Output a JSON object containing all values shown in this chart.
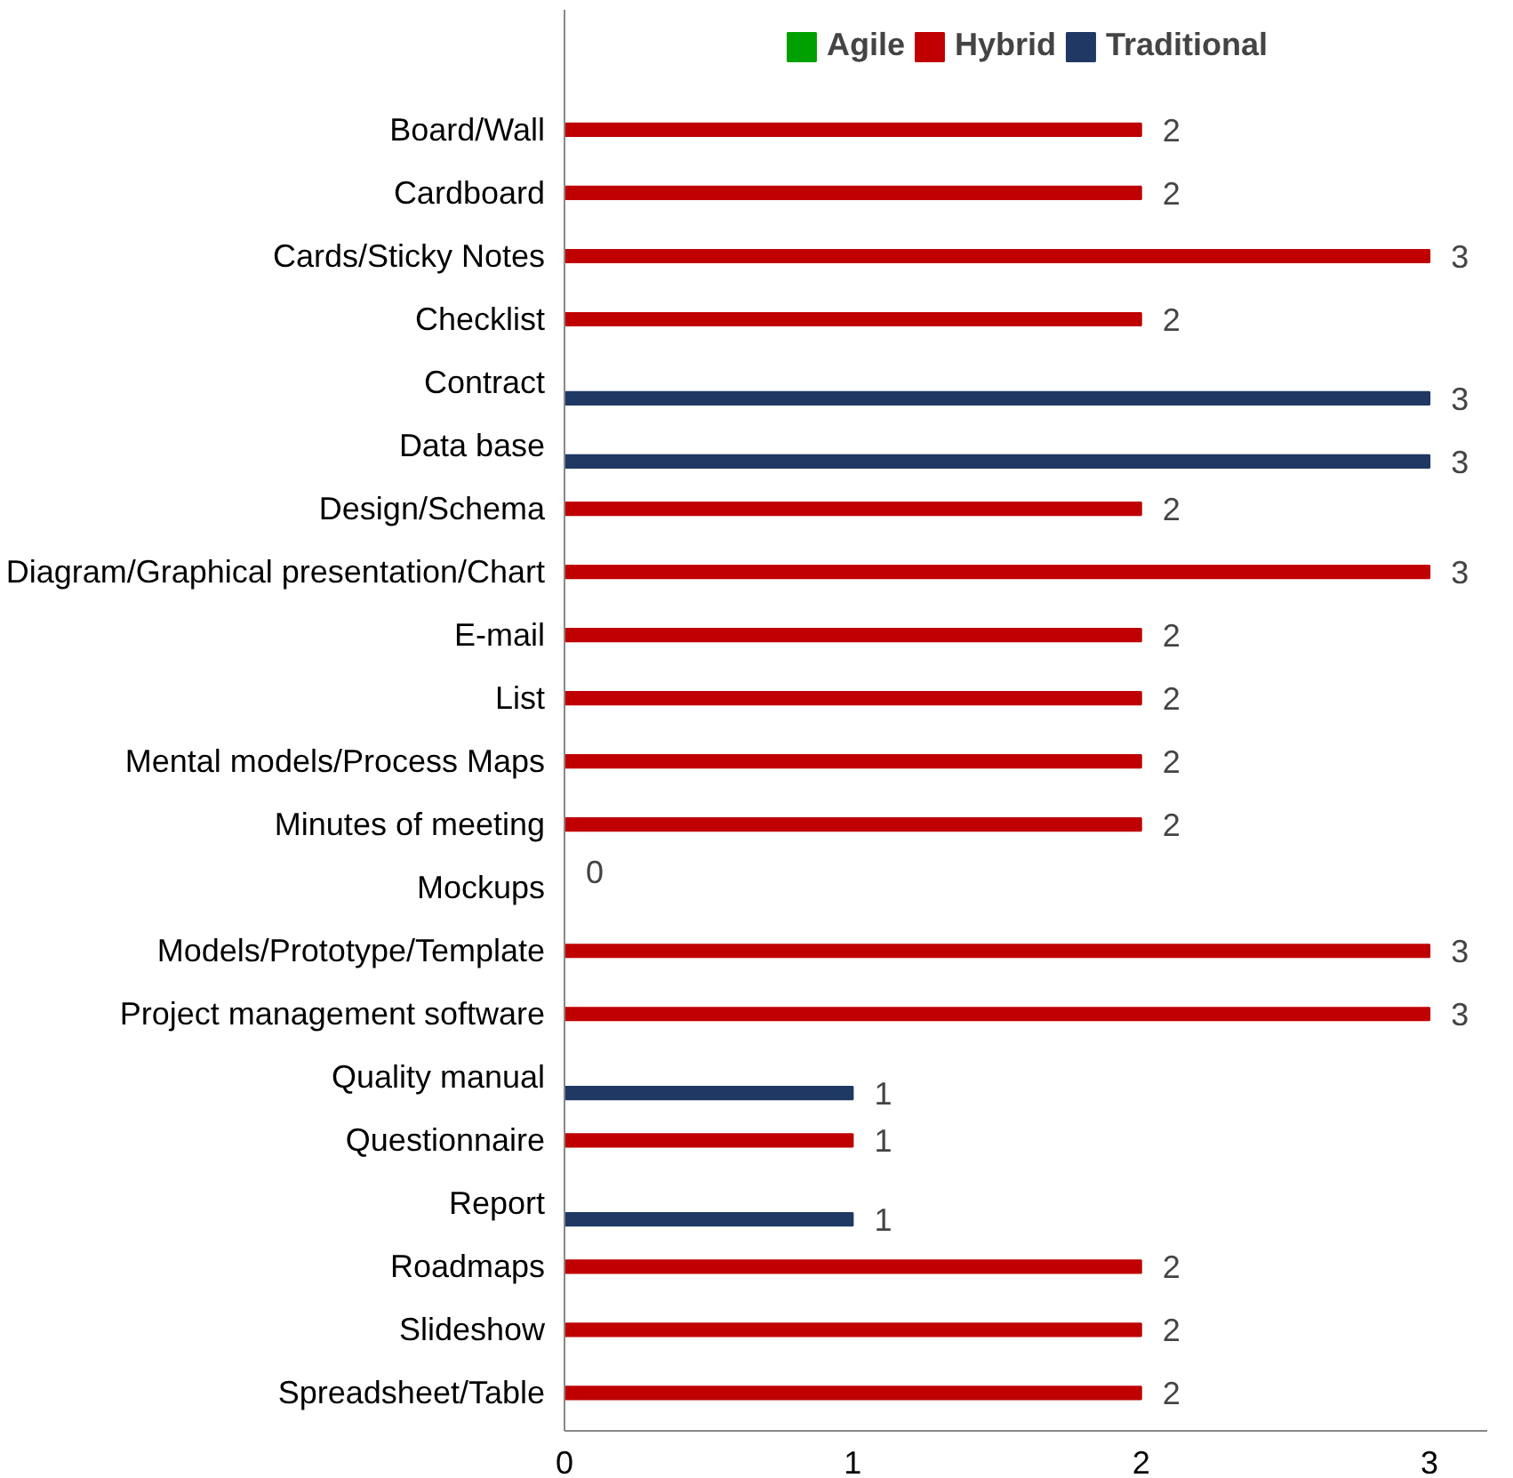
{
  "chart_data": {
    "type": "bar",
    "orientation": "horizontal",
    "categories": [
      "Board/Wall",
      "Cardboard",
      "Cards/Sticky Notes",
      "Checklist",
      "Contract",
      "Data base",
      "Design/Schema",
      "Diagram/Graphical presentation/Chart",
      "E-mail",
      "List",
      "Mental models/Process Maps",
      "Minutes of meeting",
      "Mockups",
      "Models/Prototype/Template",
      "Project management software",
      "Quality manual",
      "Questionnaire",
      "Report",
      "Roadmaps",
      "Slideshow",
      "Spreadsheet/Table"
    ],
    "series": [
      {
        "name": "Agile",
        "color": "#00a000",
        "values": [
          null,
          null,
          null,
          null,
          null,
          null,
          null,
          null,
          null,
          null,
          null,
          null,
          0,
          null,
          null,
          null,
          null,
          null,
          null,
          null,
          null
        ]
      },
      {
        "name": "Hybrid",
        "color": "#c00000",
        "values": [
          2,
          2,
          3,
          2,
          null,
          null,
          2,
          3,
          2,
          2,
          2,
          2,
          null,
          3,
          3,
          null,
          1,
          null,
          2,
          2,
          2
        ]
      },
      {
        "name": "Traditional",
        "color": "#1f3864",
        "values": [
          null,
          null,
          null,
          null,
          3,
          3,
          null,
          null,
          null,
          null,
          null,
          null,
          null,
          null,
          null,
          1,
          null,
          1,
          null,
          null,
          null
        ]
      }
    ],
    "xlim": [
      0,
      3.2
    ],
    "xticks": [
      0,
      1,
      2,
      3
    ],
    "data_labels": true,
    "legend": "top",
    "grid": false
  }
}
